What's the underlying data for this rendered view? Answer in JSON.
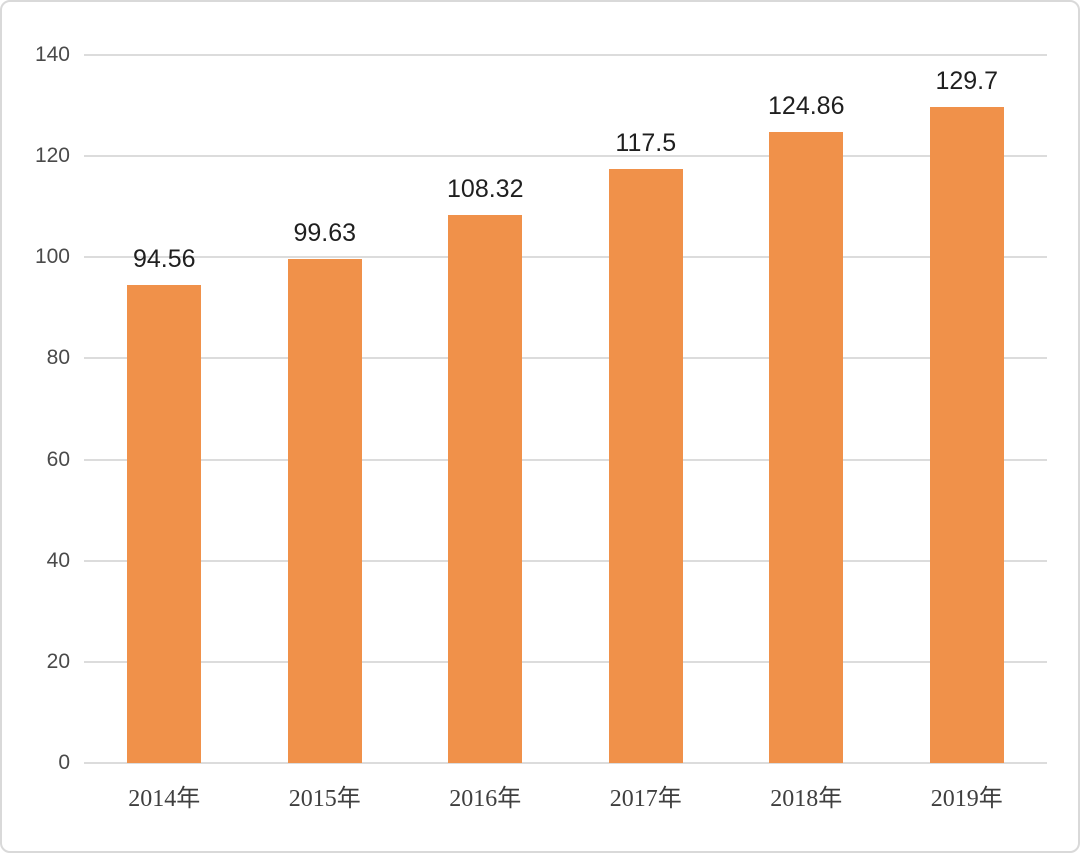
{
  "chart_data": {
    "type": "bar",
    "categories": [
      "2014年",
      "2015年",
      "2016年",
      "2017年",
      "2018年",
      "2019年"
    ],
    "values": [
      94.56,
      99.63,
      108.32,
      117.5,
      124.86,
      129.7
    ],
    "data_labels": [
      "94.56",
      "99.63",
      "108.32",
      "117.5",
      "124.86",
      "129.7"
    ],
    "title": "",
    "xlabel": "",
    "ylabel": "",
    "ylim": [
      0,
      140
    ],
    "yticks": [
      0,
      20,
      40,
      60,
      80,
      100,
      120,
      140
    ],
    "grid": true,
    "legend_position": "none",
    "colors": {
      "bar_fill": "#F0914A",
      "gridline": "#DCDCDC",
      "y_tick_text": "#4A4A4A",
      "x_tick_text": "#3F3F3F",
      "data_label_text": "#1F1F1F",
      "background": "#FFFFFF",
      "frame_border": "#D9D9D9"
    }
  }
}
